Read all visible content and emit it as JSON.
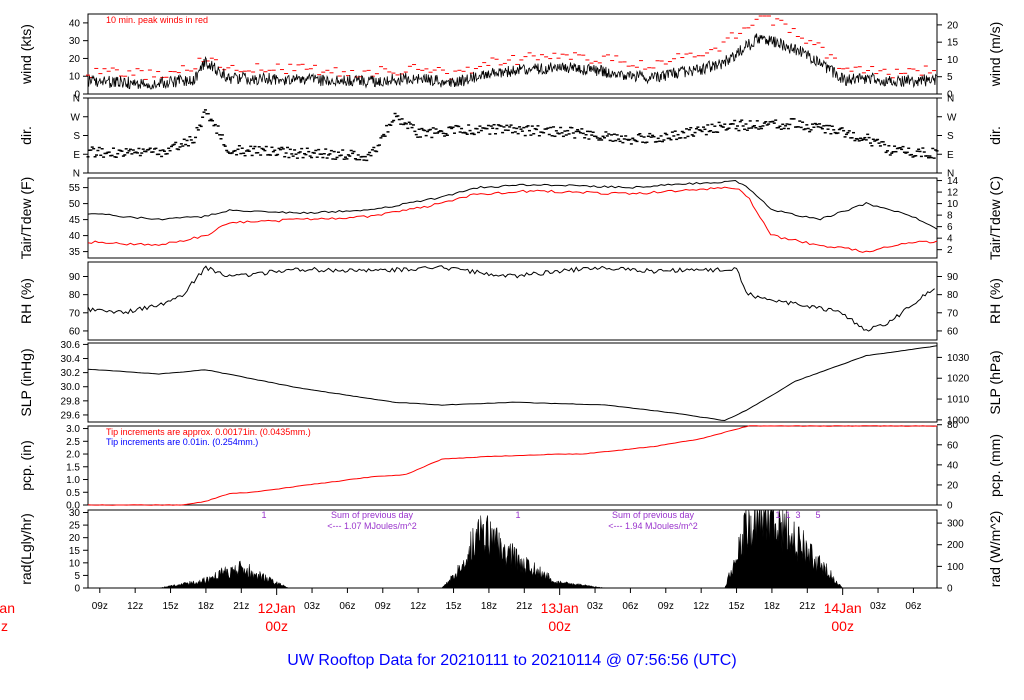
{
  "title": "UW Rooftop Data for 20210111  to  20210114 @ 07:56:56  (UTC)",
  "colors": {
    "axes": "#000000",
    "title": "#0000ff",
    "peak": "#ff0000",
    "dew": "#ff0000",
    "precip": "#ff0000",
    "note_blue": "#0000ff",
    "rad_note": "#9933cc",
    "date_label": "#ff0000"
  },
  "time_axis": {
    "ticks": [
      "09z",
      "12z",
      "15z",
      "18z",
      "21z",
      "03z",
      "06z",
      "09z",
      "12z",
      "15z",
      "18z",
      "21z",
      "03z",
      "06z",
      "09z",
      "12z",
      "15z",
      "18z",
      "21z",
      "03z",
      "06z"
    ],
    "day_labels": [
      {
        "date": "12Jan",
        "time": "00z"
      },
      {
        "date": "13Jan",
        "time": "00z"
      },
      {
        "date": "14Jan",
        "time": "00z"
      }
    ],
    "clipped_left_label": {
      "date": "Jan",
      "time": "z"
    },
    "start": "2021-01-11 08:00 UTC",
    "end": "2021-01-14 08:00 UTC"
  },
  "panels": {
    "wind": {
      "ylabel_left": "wind (kts)",
      "ylabel_right": "wind (m/s)",
      "ticks_left": [
        "0",
        "10",
        "20",
        "30",
        "40"
      ],
      "ticks_right": [
        "0",
        "5",
        "10",
        "15",
        "20"
      ],
      "note": "10 min. peak winds in red"
    },
    "dir": {
      "ylabel_left": "dir.",
      "ylabel_right": "dir.",
      "ticks_left": [
        "N",
        "E",
        "S",
        "W",
        "N"
      ],
      "ticks_right": [
        "N",
        "E",
        "S",
        "W",
        "N"
      ]
    },
    "temp": {
      "ylabel_left": "Tair/Tdew (F)",
      "ylabel_right": "Tair/Tdew (C)",
      "ticks_left": [
        "35",
        "40",
        "45",
        "50",
        "55"
      ],
      "ticks_right": [
        "2",
        "4",
        "6",
        "8",
        "10",
        "12",
        "14"
      ]
    },
    "rh": {
      "ylabel_left": "RH (%)",
      "ylabel_right": "RH (%)",
      "ticks_left": [
        "60",
        "70",
        "80",
        "90"
      ],
      "ticks_right": [
        "60",
        "70",
        "80",
        "90"
      ]
    },
    "slp": {
      "ylabel_left": "SLP (inHg)",
      "ylabel_right": "SLP (hPa)",
      "ticks_left": [
        "29.6",
        "29.8",
        "30.0",
        "30.2",
        "30.4",
        "30.6"
      ],
      "ticks_right": [
        "1000",
        "1010",
        "1020",
        "1030"
      ]
    },
    "pcp": {
      "ylabel_left": "pcp. (in)",
      "ylabel_right": "pcp. (mm)",
      "ticks_left": [
        "0.0",
        "0.5",
        "1.0",
        "1.5",
        "2.0",
        "2.5",
        "3.0"
      ],
      "ticks_right": [
        "0",
        "20",
        "40",
        "60",
        "80"
      ],
      "note_red": "Tip increments are approx. 0.00171in. (0.0435mm.)",
      "note_blue": "Tip increments are 0.01in. (0.254mm.)"
    },
    "rad": {
      "ylabel_left": "rad(Lgly/hr)",
      "ylabel_right": "rad (W/m^2)",
      "ticks_left": [
        "0",
        "5",
        "10",
        "15",
        "20",
        "25",
        "30"
      ],
      "ticks_right": [
        "0",
        "100",
        "200",
        "300"
      ],
      "day_sums": [
        {
          "marker": "1",
          "text1": "Sum of previous day",
          "text2": "<--- 1.07 MJoules/m^2"
        },
        {
          "marker": "1",
          "text1": "Sum of previous day",
          "text2": "<--- 1.94 MJoules/m^2"
        }
      ],
      "day3_markers": [
        "1",
        "1",
        "3",
        "5"
      ]
    }
  },
  "chart_data": [
    {
      "type": "line",
      "name": "wind",
      "x_hours_since_start": [
        0,
        6,
        9,
        10,
        12,
        18,
        24,
        26,
        28,
        31,
        34,
        40,
        46,
        48,
        50,
        52,
        54,
        57,
        58,
        60,
        62,
        64,
        66,
        68,
        72
      ],
      "series": [
        {
          "name": "wind (kts)",
          "values": [
            7,
            6,
            8,
            18,
            9,
            8,
            7,
            8,
            9,
            6,
            12,
            15,
            11,
            9,
            12,
            14,
            18,
            32,
            30,
            25,
            18,
            8,
            9,
            7,
            8
          ]
        },
        {
          "name": "10 min. peak winds in red",
          "values": [
            12,
            11,
            14,
            22,
            15,
            14,
            12,
            13,
            15,
            11,
            18,
            22,
            18,
            16,
            20,
            22,
            28,
            45,
            42,
            36,
            26,
            14,
            14,
            12,
            13
          ]
        }
      ],
      "ylim": [
        0,
        45
      ]
    },
    {
      "type": "scatter",
      "name": "dir",
      "categories_y": [
        "N",
        "E",
        "S",
        "W",
        "N"
      ],
      "x_hours_since_start": [
        0,
        6,
        9,
        10,
        12,
        18,
        22,
        24,
        26,
        28,
        33,
        40,
        46,
        50,
        54,
        56,
        58,
        60,
        66,
        68,
        70,
        72
      ],
      "values_deg": [
        100,
        95,
        160,
        300,
        110,
        95,
        90,
        80,
        270,
        190,
        210,
        200,
        160,
        180,
        225,
        230,
        235,
        235,
        170,
        110,
        100,
        95
      ],
      "ylim": [
        0,
        360
      ]
    },
    {
      "type": "line",
      "name": "temperature",
      "x_hours_since_start": [
        0,
        6,
        10,
        12,
        18,
        24,
        30,
        33,
        38,
        46,
        50,
        55,
        56,
        58,
        62,
        66,
        70,
        72
      ],
      "series": [
        {
          "name": "Tair (F)",
          "values": [
            47,
            45,
            46,
            48,
            47,
            48,
            52,
            55,
            56,
            55,
            56,
            57,
            55,
            48,
            45,
            50,
            46,
            42
          ]
        },
        {
          "name": "Tdew (F)",
          "values": [
            38,
            37,
            40,
            44,
            45,
            46,
            50,
            53,
            54,
            53,
            54,
            55,
            52,
            40,
            37,
            35,
            38,
            38
          ]
        }
      ],
      "ylim": [
        33,
        58
      ]
    },
    {
      "type": "line",
      "name": "rh",
      "x_hours_since_start": [
        0,
        3,
        6,
        8,
        10,
        12,
        18,
        24,
        30,
        36,
        43,
        48,
        55,
        56,
        60,
        64,
        66,
        68,
        72
      ],
      "values": [
        72,
        70,
        74,
        80,
        95,
        90,
        94,
        93,
        95,
        90,
        95,
        93,
        94,
        80,
        75,
        70,
        60,
        65,
        85
      ],
      "ylim": [
        55,
        98
      ]
    },
    {
      "type": "line",
      "name": "slp",
      "x_hours_since_start": [
        0,
        6,
        10,
        18,
        26,
        30,
        36,
        44,
        50,
        54,
        56,
        60,
        66,
        72
      ],
      "values": [
        30.25,
        30.18,
        30.24,
        29.98,
        29.78,
        29.74,
        29.78,
        29.74,
        29.62,
        29.52,
        29.68,
        30.08,
        30.44,
        30.58
      ],
      "ylim": [
        29.5,
        30.62
      ]
    },
    {
      "type": "line",
      "name": "pcp",
      "x_hours_since_start": [
        0,
        8,
        10,
        12,
        14,
        18,
        24,
        27,
        30,
        34,
        40,
        42,
        48,
        52,
        56,
        72
      ],
      "values": [
        0,
        0,
        0.15,
        0.45,
        0.5,
        0.75,
        1.1,
        1.2,
        1.8,
        1.9,
        2.0,
        2.0,
        2.3,
        2.6,
        3.1,
        3.1
      ],
      "ylim": [
        0,
        3.1
      ]
    },
    {
      "type": "area",
      "name": "rad",
      "x_hours_since_start": [
        6,
        10,
        12,
        13,
        14,
        17,
        30,
        32,
        33,
        35,
        38,
        40,
        44,
        54,
        56,
        57,
        58,
        62,
        64
      ],
      "values": [
        0,
        3,
        7,
        8,
        6,
        0,
        0,
        10,
        25,
        15,
        7,
        2,
        0,
        0,
        25,
        30,
        28,
        10,
        0
      ],
      "ylim": [
        0,
        31
      ]
    }
  ]
}
